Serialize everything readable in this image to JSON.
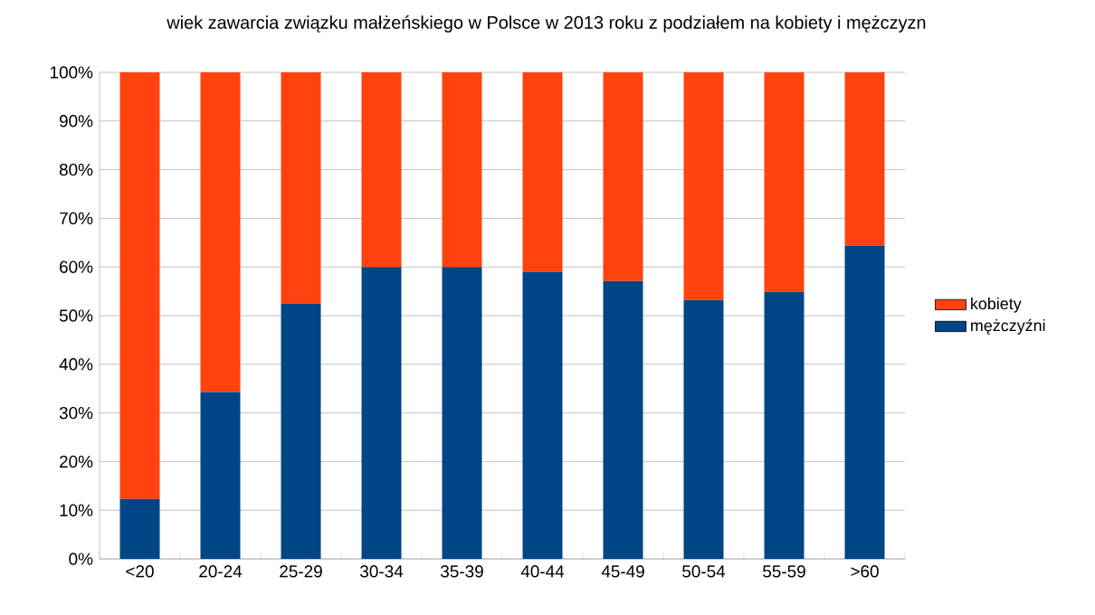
{
  "chart_data": {
    "type": "bar",
    "stacked": true,
    "title": "wiek zawarcia związku małżeńskiego w Polsce w 2013 roku z podziałem na kobiety i mężczyzn",
    "categories": [
      "<20",
      "20-24",
      "25-29",
      "30-34",
      "35-39",
      "40-44",
      "45-49",
      "50-54",
      "55-59",
      ">60"
    ],
    "series": [
      {
        "name": "mężczyźni",
        "color": "#004586",
        "values": [
          12.3,
          34.3,
          52.4,
          60.0,
          60.0,
          59.0,
          57.1,
          53.2,
          54.9,
          64.4
        ]
      },
      {
        "name": "kobiety",
        "color": "#ff420e",
        "values": [
          87.7,
          65.7,
          47.6,
          40.0,
          40.0,
          41.0,
          42.9,
          46.8,
          45.1,
          35.6
        ]
      }
    ],
    "ylim": [
      0,
      100
    ],
    "yticks": [
      {
        "value": 0,
        "label": "0%"
      },
      {
        "value": 10,
        "label": "10%"
      },
      {
        "value": 20,
        "label": "20%"
      },
      {
        "value": 30,
        "label": "30%"
      },
      {
        "value": 40,
        "label": "40%"
      },
      {
        "value": 50,
        "label": "50%"
      },
      {
        "value": 60,
        "label": "60%"
      },
      {
        "value": 70,
        "label": "70%"
      },
      {
        "value": 80,
        "label": "80%"
      },
      {
        "value": 90,
        "label": "90%"
      },
      {
        "value": 100,
        "label": "100%"
      }
    ],
    "grid": "y",
    "legend": "right"
  }
}
